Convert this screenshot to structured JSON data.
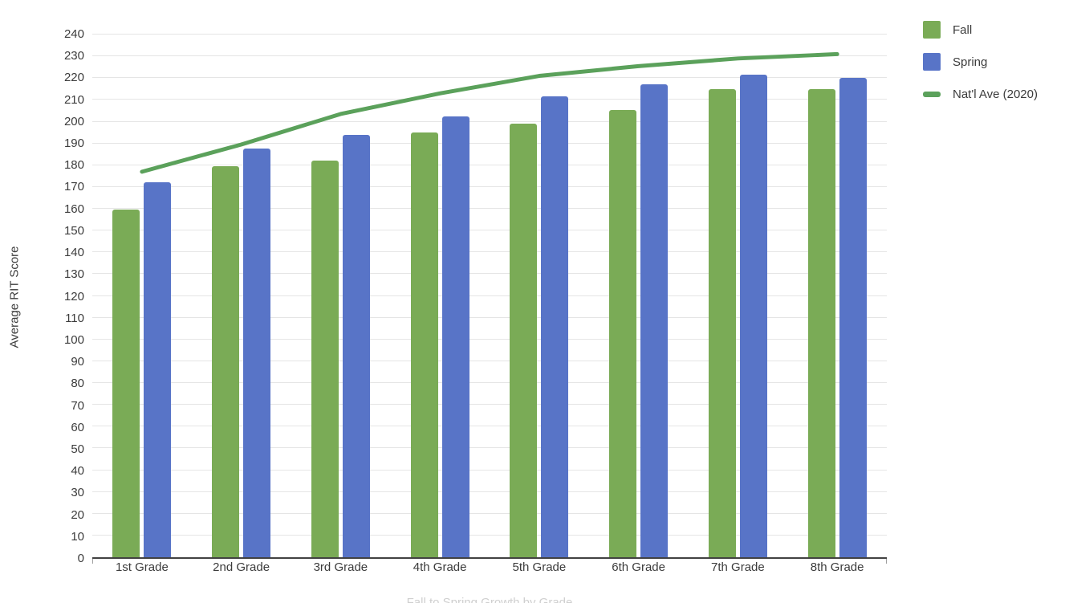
{
  "chart": {
    "y_axis_title": "Average RIT Score",
    "caption_partial": "Fall to Spring Growth by Grade",
    "colors": {
      "fall_bar": "#7aab56",
      "spring_bar": "#5874c7",
      "natl_ave_line": "#5ba15b",
      "gridline": "#e5e5e5",
      "axis_line": "#424242",
      "tick_text": "#3c3c3c"
    },
    "legend": {
      "position": "right",
      "items": [
        "Fall",
        "Spring",
        "Nat'l Ave (2020)"
      ]
    }
  },
  "chart_data": {
    "type": "bar",
    "title": "",
    "xlabel": "",
    "ylabel": "Average RIT Score",
    "ylim": [
      0,
      240
    ],
    "y_tick_step": 10,
    "y_ticks": [
      0,
      10,
      20,
      30,
      40,
      50,
      60,
      70,
      80,
      90,
      100,
      110,
      120,
      130,
      140,
      150,
      160,
      170,
      180,
      190,
      200,
      210,
      220,
      230,
      240
    ],
    "grid": true,
    "legend_position": "right",
    "categories": [
      "1st Grade",
      "2nd Grade",
      "3rd Grade",
      "4th Grade",
      "5th Grade",
      "6th Grade",
      "7th Grade",
      "8th Grade"
    ],
    "series": [
      {
        "name": "Fall",
        "type": "bar",
        "color": "#7aab56",
        "values": [
          159.5,
          179.5,
          182,
          195,
          199,
          205.5,
          215,
          215
        ]
      },
      {
        "name": "Spring",
        "type": "bar",
        "color": "#5874c7",
        "values": [
          172,
          187.5,
          194,
          202.5,
          211.5,
          217,
          221.5,
          220
        ]
      },
      {
        "name": "Nat'l Ave (2020)",
        "type": "line",
        "color": "#5ba15b",
        "values": [
          177,
          189.5,
          203.5,
          213,
          221,
          225.5,
          229,
          231
        ]
      }
    ]
  }
}
